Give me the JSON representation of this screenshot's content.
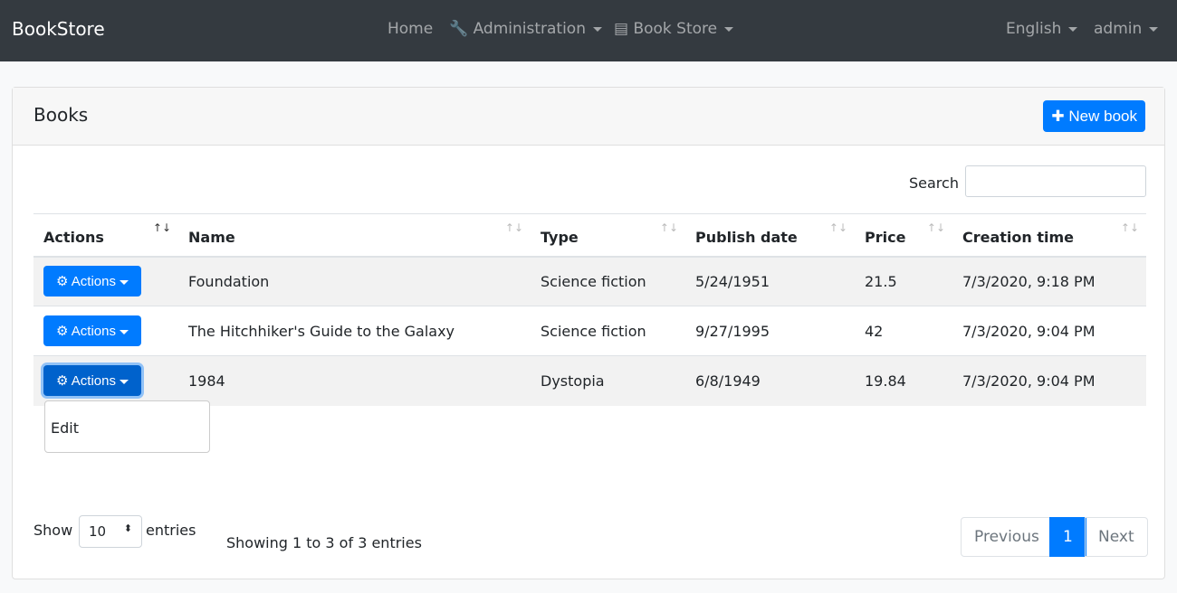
{
  "nav": {
    "brand": "BookStore",
    "home": "Home",
    "admin": "Administration",
    "bookstore": "Book Store",
    "lang": "English",
    "user": "admin"
  },
  "card": {
    "title": "Books",
    "new_book": "New book",
    "search_label": "Search",
    "search_value": ""
  },
  "table": {
    "headers": [
      "Actions",
      "Name",
      "Type",
      "Publish date",
      "Price",
      "Creation time"
    ],
    "action_label": "Actions",
    "rows": [
      [
        "Foundation",
        "Science fiction",
        "5/24/1951",
        "21.5",
        "7/3/2020, 9:18 PM"
      ],
      [
        "The Hitchhiker's Guide to the Galaxy",
        "Science fiction",
        "9/27/1995",
        "42",
        "7/3/2020, 9:04 PM"
      ],
      [
        "1984",
        "Dystopia",
        "6/8/1949",
        "19.84",
        "7/3/2020, 9:04 PM"
      ]
    ]
  },
  "dropdown": {
    "edit": "Edit"
  },
  "footer": {
    "show": "Show",
    "entries": "entries",
    "page_size": "10",
    "info": "Showing 1 to 3 of 3 entries",
    "previous": "Previous",
    "page": "1",
    "next": "Next"
  },
  "colors": {
    "primary": "#007bff",
    "navbar": "#343a40"
  }
}
